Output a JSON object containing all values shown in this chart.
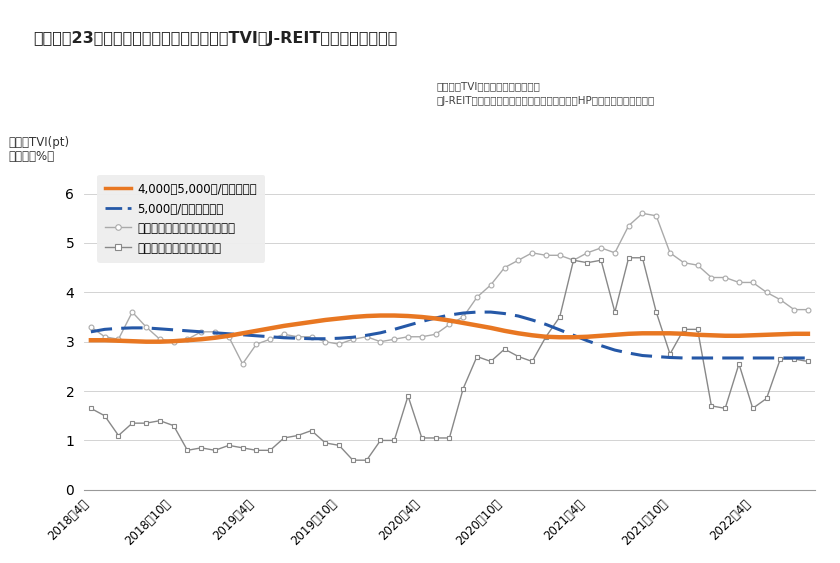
{
  "title": "図　東京23区ハイクラス賃貸住宅の空室率TVI（J-REITの空室率の比較）",
  "ylabel1": "空室率TVI(pt)",
  "ylabel2": "空室率（%）",
  "annotation1": "【空室率TVI】分析：株式会社タス",
  "annotation2": "【J-REIT空室率】作成：株式会社タス（各社のHPより公開データより）",
  "xtick_labels": [
    "2018年4月",
    "2018年10月",
    "2019年4月",
    "2019年10月",
    "2020年4月",
    "2020年10月",
    "2021年4月",
    "2021年10月",
    "2022年4月"
  ],
  "ylim": [
    0,
    6.5
  ],
  "yticks": [
    0,
    1,
    2,
    3,
    4,
    5,
    6
  ],
  "legend_entries": [
    "4,000～5,000円/㎡月クラス",
    "5,000円/㎡月超クラス",
    "アドバンスレジデンス投資法人",
    "大和証券リビング投資法人"
  ],
  "orange_line": [
    3.03,
    3.03,
    3.02,
    3.01,
    3.0,
    3.0,
    3.01,
    3.03,
    3.05,
    3.08,
    3.12,
    3.17,
    3.22,
    3.27,
    3.32,
    3.36,
    3.4,
    3.44,
    3.47,
    3.5,
    3.52,
    3.53,
    3.53,
    3.52,
    3.5,
    3.47,
    3.43,
    3.38,
    3.33,
    3.28,
    3.22,
    3.17,
    3.13,
    3.1,
    3.09,
    3.09,
    3.1,
    3.12,
    3.14,
    3.16,
    3.17,
    3.17,
    3.17,
    3.16,
    3.14,
    3.13,
    3.12,
    3.12,
    3.13,
    3.14,
    3.15,
    3.16,
    3.16
  ],
  "blue_dashed": [
    3.2,
    3.25,
    3.27,
    3.28,
    3.28,
    3.26,
    3.24,
    3.22,
    3.2,
    3.18,
    3.16,
    3.14,
    3.12,
    3.1,
    3.08,
    3.07,
    3.06,
    3.06,
    3.07,
    3.09,
    3.13,
    3.18,
    3.25,
    3.33,
    3.41,
    3.48,
    3.54,
    3.58,
    3.6,
    3.6,
    3.57,
    3.52,
    3.44,
    3.35,
    3.24,
    3.13,
    3.02,
    2.92,
    2.83,
    2.77,
    2.72,
    2.7,
    2.68,
    2.67,
    2.67,
    2.67,
    2.67,
    2.67,
    2.67,
    2.67,
    2.67,
    2.67,
    2.67
  ],
  "advance_residence": [
    3.3,
    3.1,
    3.05,
    3.6,
    3.3,
    3.05,
    3.0,
    3.05,
    3.2,
    3.2,
    3.1,
    2.55,
    2.95,
    3.05,
    3.15,
    3.1,
    3.1,
    3.0,
    2.95,
    3.05,
    3.1,
    3.0,
    3.05,
    3.1,
    3.1,
    3.15,
    3.35,
    3.5,
    3.9,
    4.15,
    4.5,
    4.65,
    4.8,
    4.75,
    4.75,
    4.65,
    4.8,
    4.9,
    4.8,
    5.35,
    5.6,
    5.55,
    4.8,
    4.6,
    4.55,
    4.3,
    4.3,
    4.2,
    4.2,
    4.0,
    3.85,
    3.65,
    3.65
  ],
  "daiwa_living": [
    1.65,
    1.5,
    1.1,
    1.35,
    1.35,
    1.4,
    1.3,
    0.8,
    0.85,
    0.8,
    0.9,
    0.85,
    0.8,
    0.8,
    1.05,
    1.1,
    1.2,
    0.95,
    0.9,
    0.6,
    0.6,
    1.0,
    1.0,
    1.9,
    1.05,
    1.05,
    1.05,
    2.05,
    2.7,
    2.6,
    2.85,
    2.7,
    2.6,
    3.1,
    3.5,
    4.65,
    4.6,
    4.65,
    3.6,
    4.7,
    4.7,
    3.6,
    2.75,
    3.25,
    3.25,
    1.7,
    1.65,
    2.55,
    1.65,
    1.85,
    2.65,
    2.65,
    2.6
  ],
  "n_points": 53,
  "background_color": "#ffffff",
  "plot_bg_color": "#ffffff",
  "orange_color": "#e87722",
  "blue_color": "#2558a7",
  "advance_color": "#aaaaaa",
  "daiwa_color": "#888888",
  "title_bar_color": "#1a4a8a",
  "legend_bg_color": "#eeeeee"
}
